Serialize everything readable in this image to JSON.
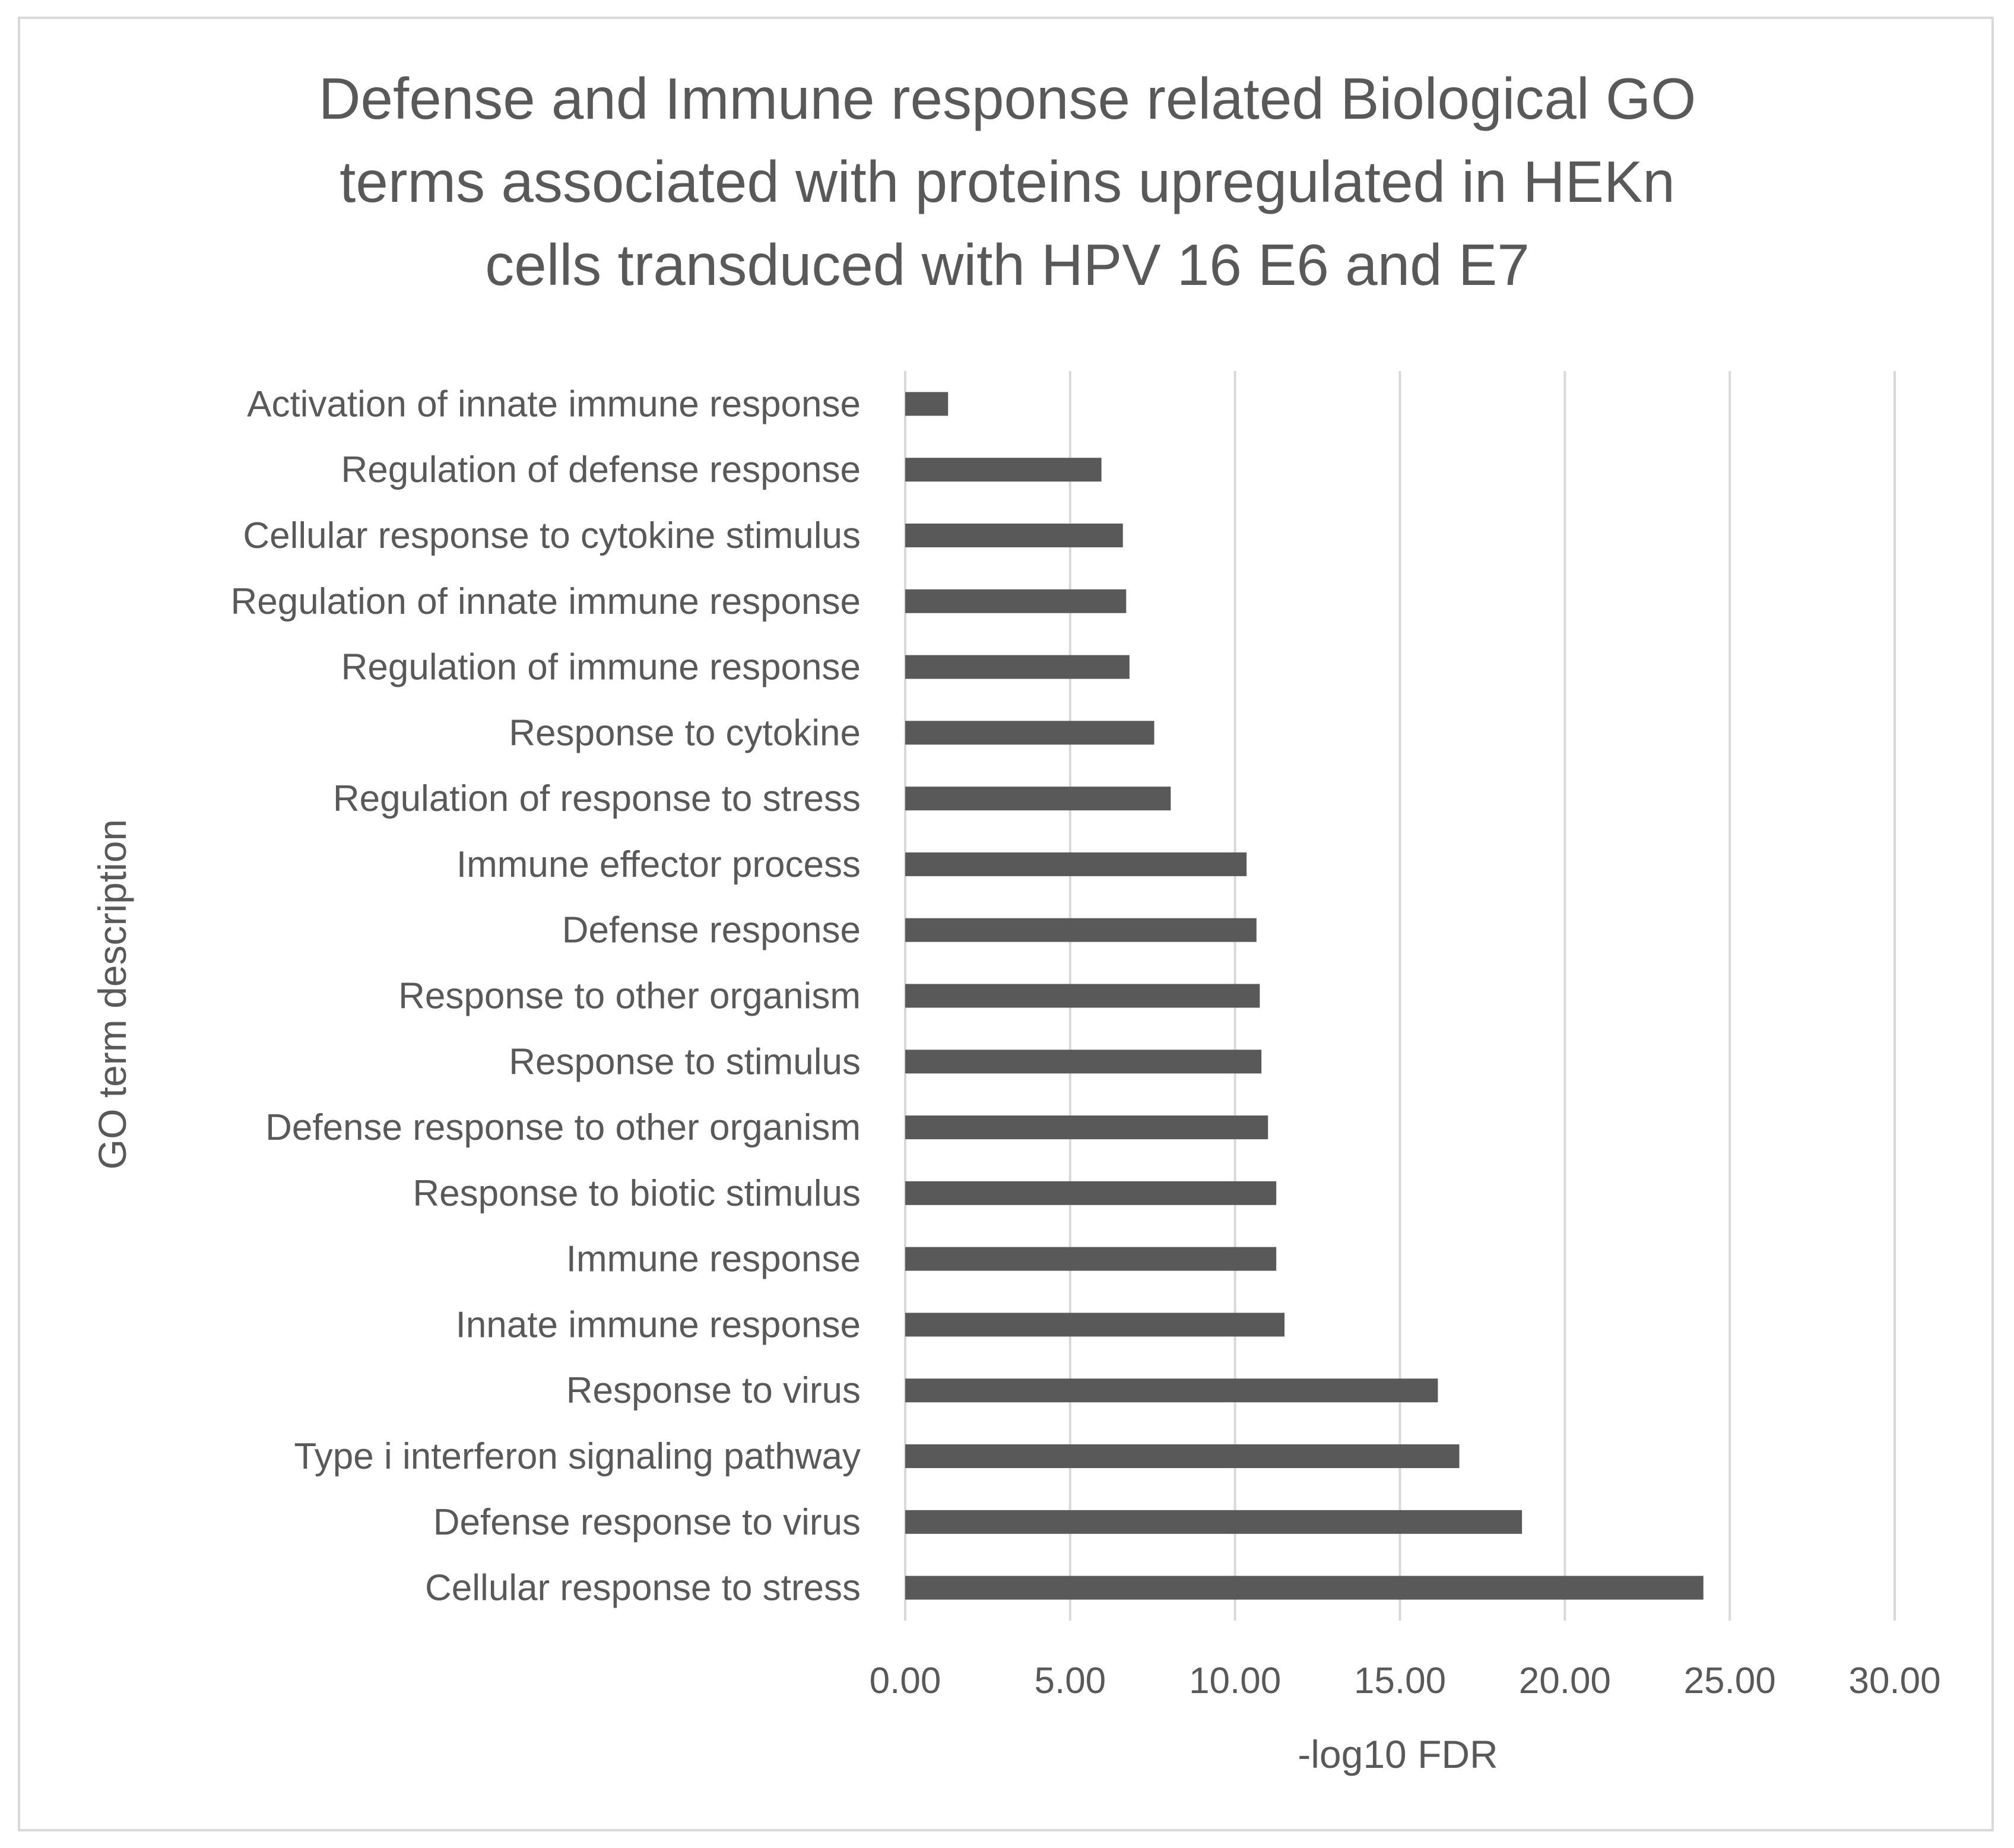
{
  "chart_data": {
    "type": "bar",
    "orientation": "horizontal",
    "title_lines": [
      "Defense and Immune response related Biological GO",
      "terms associated with proteins upregulated in HEKn",
      "cells transduced with HPV 16 E6 and E7"
    ],
    "xlabel": "-log10 FDR",
    "ylabel": "GO term description",
    "xlim": [
      0,
      30
    ],
    "x_ticks": [
      "0.00",
      "5.00",
      "10.00",
      "15.00",
      "20.00",
      "25.00",
      "30.00"
    ],
    "grid": "vertical",
    "legend": "none",
    "bar_color": "#595959",
    "categories": [
      "Activation of innate immune response",
      "Regulation of defense response",
      "Cellular response to cytokine stimulus",
      "Regulation of innate immune response",
      "Regulation of immune response",
      "Response to cytokine",
      "Regulation of response to stress",
      "Immune effector process",
      "Defense response",
      "Response to other organism",
      "Response to stimulus",
      "Defense response to other organism",
      "Response to biotic stimulus",
      "Immune response",
      "Innate immune response",
      "Response to virus",
      "Type i interferon signaling pathway",
      "Defense response to virus",
      "Cellular response to stress"
    ],
    "values": [
      1.3,
      5.95,
      6.6,
      6.7,
      6.8,
      7.55,
      8.05,
      10.35,
      10.65,
      10.75,
      10.8,
      11.0,
      11.25,
      11.25,
      11.5,
      16.15,
      16.8,
      18.7,
      24.2
    ]
  }
}
